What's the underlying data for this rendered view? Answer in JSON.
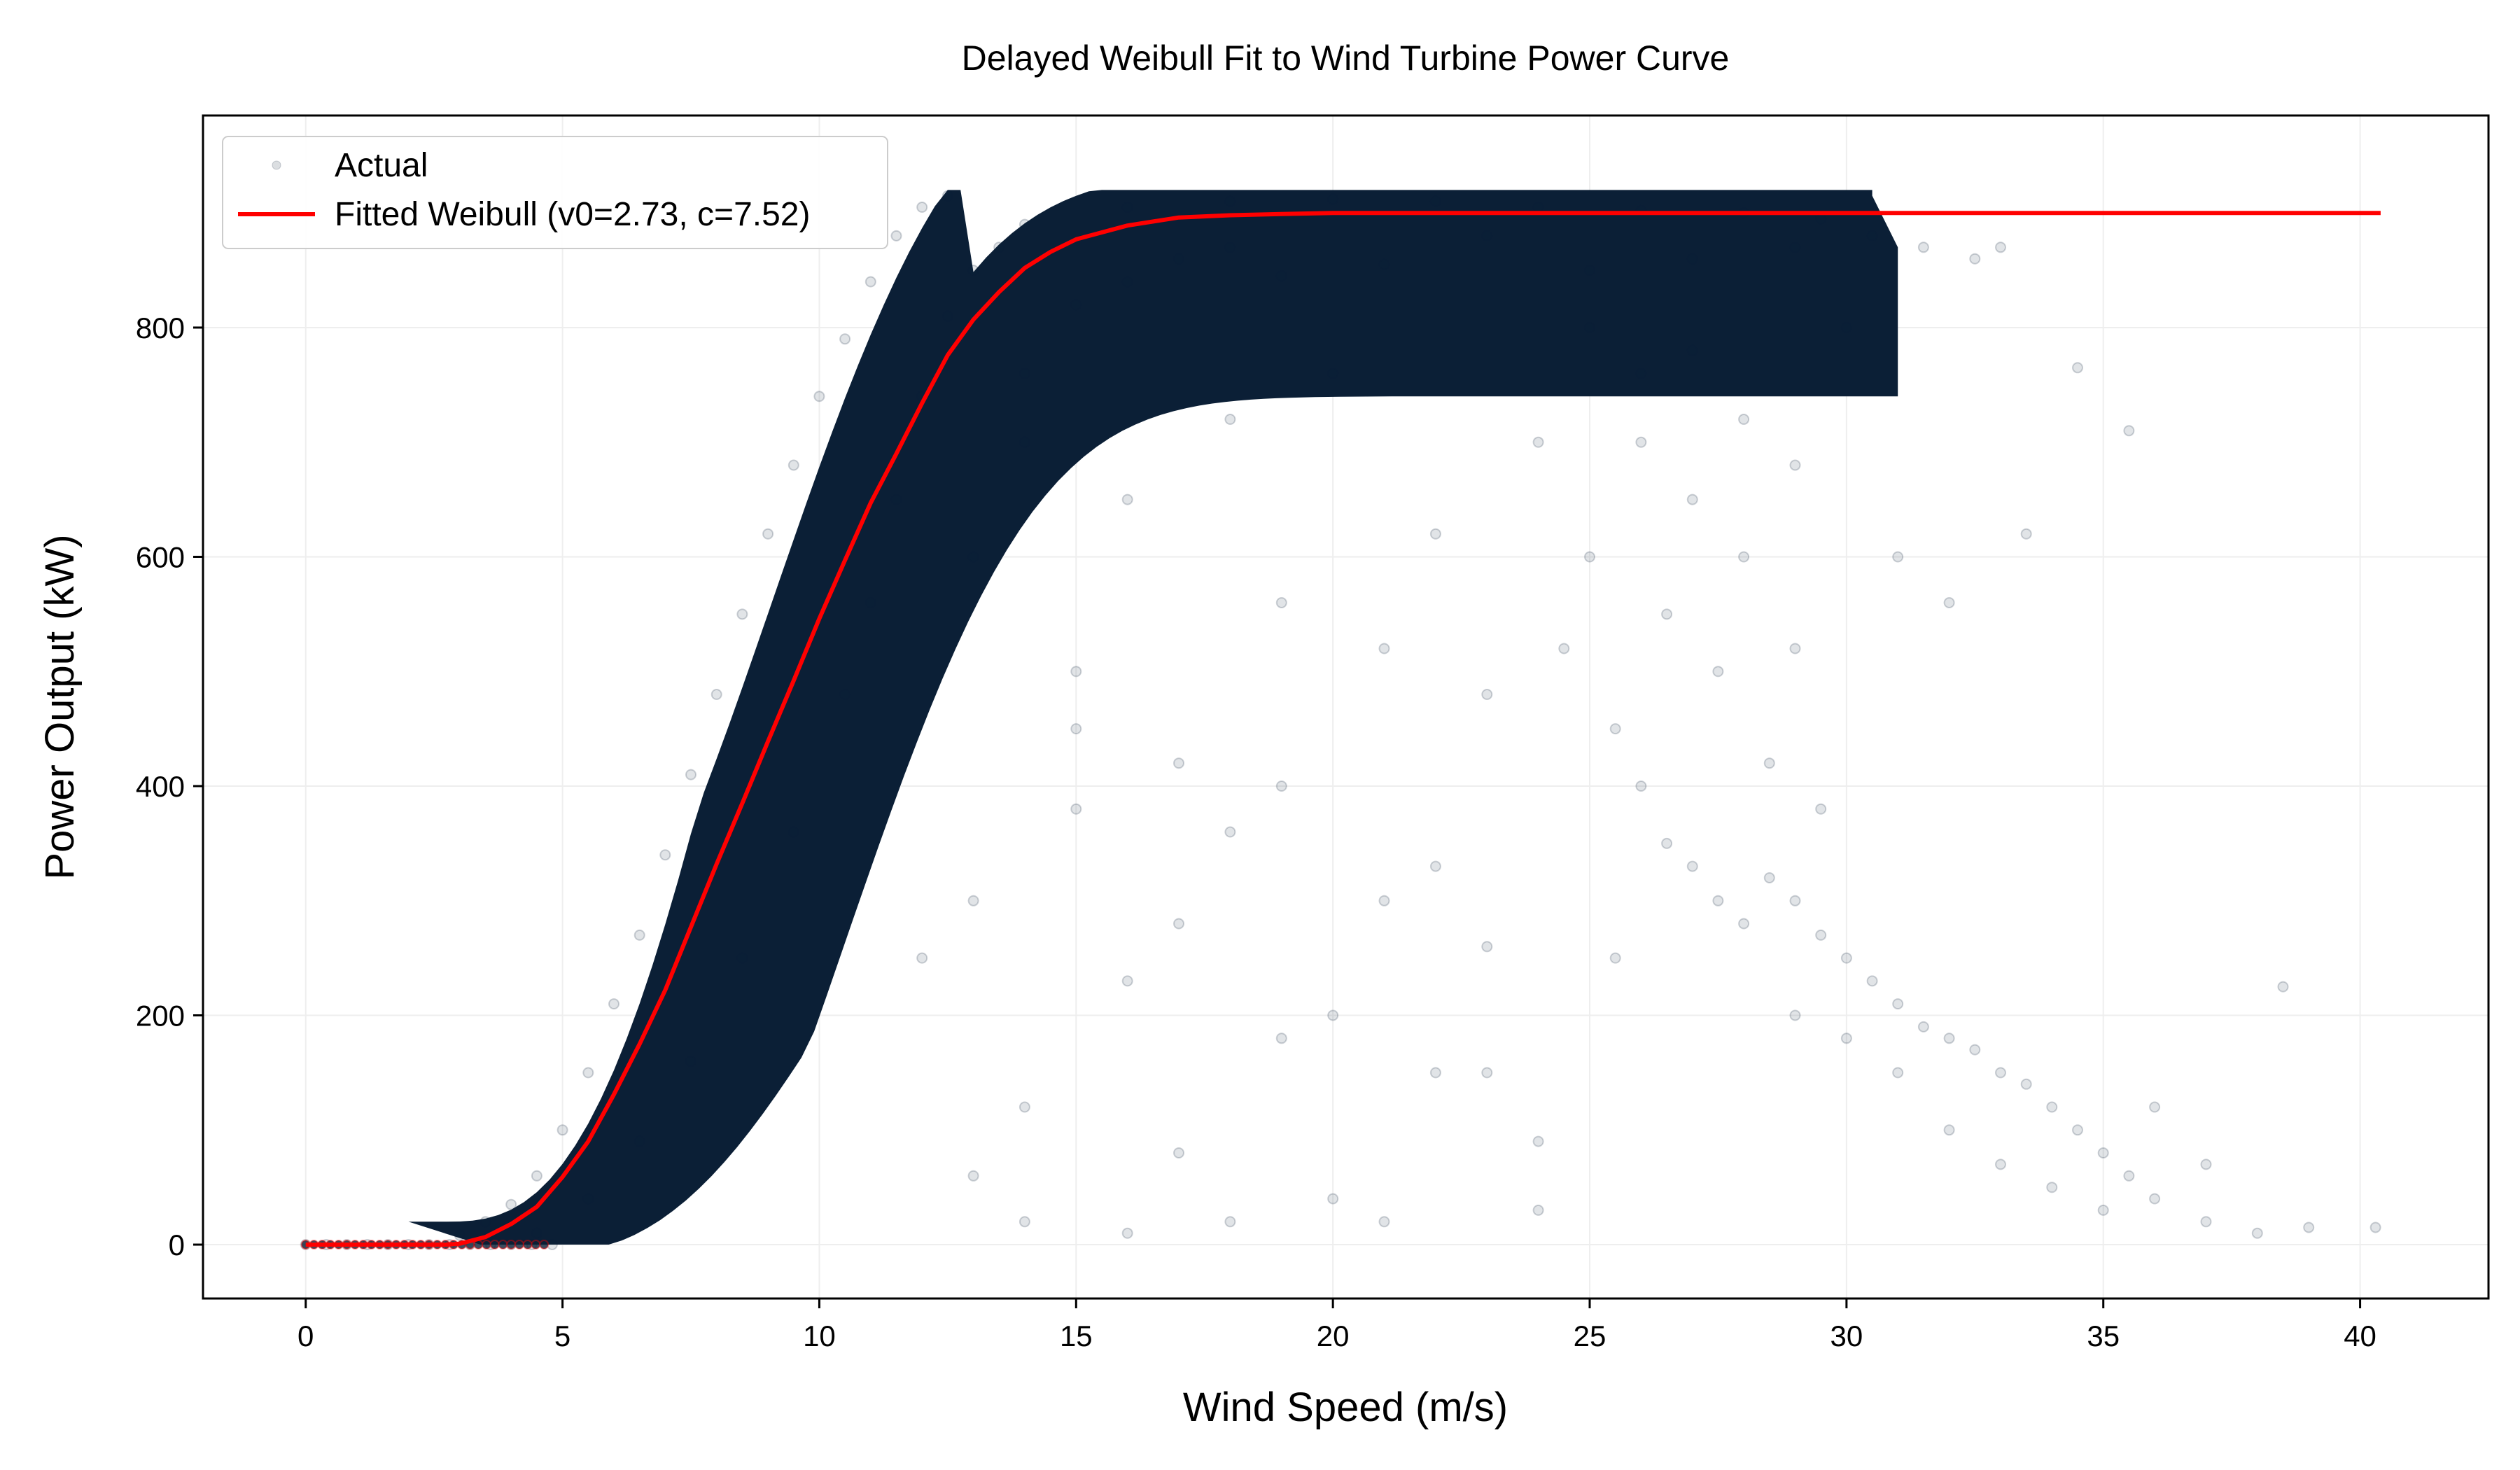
{
  "chart_data": {
    "type": "scatter",
    "title": "Delayed Weibull Fit to Wind Turbine Power Curve",
    "xlabel": "Wind Speed (m/s)",
    "ylabel": "Power Output (kW)",
    "xlim": [
      -2,
      42.5
    ],
    "ylim": [
      -47,
      985
    ],
    "xticks": [
      0,
      5,
      10,
      15,
      20,
      25,
      30,
      35,
      40
    ],
    "yticks": [
      0,
      200,
      400,
      600,
      800
    ],
    "grid": true,
    "legend_position": "top-left",
    "series": [
      {
        "name": "Actual",
        "kind": "scatter",
        "color": "#0b1f36",
        "opacity": 0.12,
        "points": [
          [
            0.0,
            0
          ],
          [
            0.4,
            0
          ],
          [
            0.8,
            0
          ],
          [
            1.2,
            0
          ],
          [
            1.6,
            0
          ],
          [
            2.0,
            0
          ],
          [
            2.4,
            0
          ],
          [
            2.8,
            0
          ],
          [
            3.2,
            0
          ],
          [
            3.6,
            0
          ],
          [
            4.0,
            0
          ],
          [
            4.4,
            0
          ],
          [
            4.8,
            0
          ],
          [
            3.0,
            8
          ],
          [
            3.5,
            20
          ],
          [
            4.0,
            35
          ],
          [
            4.5,
            60
          ],
          [
            5.0,
            100
          ],
          [
            5.5,
            150
          ],
          [
            6.0,
            210
          ],
          [
            6.5,
            270
          ],
          [
            7.0,
            340
          ],
          [
            7.5,
            410
          ],
          [
            8.0,
            480
          ],
          [
            8.5,
            550
          ],
          [
            9.0,
            620
          ],
          [
            9.5,
            680
          ],
          [
            10.0,
            740
          ],
          [
            10.5,
            790
          ],
          [
            11.0,
            840
          ],
          [
            11.5,
            880
          ],
          [
            12.0,
            905
          ],
          [
            12.5,
            915
          ],
          [
            4.5,
            10
          ],
          [
            5.5,
            40
          ],
          [
            6.5,
            90
          ],
          [
            7.5,
            160
          ],
          [
            8.5,
            250
          ],
          [
            9.5,
            360
          ],
          [
            10.5,
            480
          ],
          [
            11.0,
            560
          ],
          [
            11.5,
            650
          ],
          [
            12.0,
            740
          ],
          [
            12.5,
            810
          ],
          [
            13.0,
            850
          ],
          [
            13.5,
            870
          ],
          [
            14,
            890
          ],
          [
            16,
            905
          ],
          [
            18,
            910
          ],
          [
            20,
            912
          ],
          [
            22,
            910
          ],
          [
            24,
            905
          ],
          [
            26,
            902
          ],
          [
            28,
            900
          ],
          [
            29.5,
            895
          ],
          [
            30.5,
            880
          ],
          [
            31.5,
            870
          ],
          [
            32.5,
            860
          ],
          [
            14,
            760
          ],
          [
            15,
            820
          ],
          [
            16,
            840
          ],
          [
            17,
            860
          ],
          [
            18,
            870
          ],
          [
            19,
            845
          ],
          [
            21,
            855
          ],
          [
            23,
            880
          ],
          [
            25,
            850
          ],
          [
            27,
            860
          ],
          [
            29,
            870
          ],
          [
            13,
            600
          ],
          [
            14,
            700
          ],
          [
            15,
            500
          ],
          [
            16,
            650
          ],
          [
            17,
            420
          ],
          [
            18,
            720
          ],
          [
            19,
            560
          ],
          [
            20,
            760
          ],
          [
            21,
            300
          ],
          [
            22,
            620
          ],
          [
            23,
            480
          ],
          [
            24,
            700
          ],
          [
            13,
            300
          ],
          [
            14,
            120
          ],
          [
            15,
            450
          ],
          [
            16,
            230
          ],
          [
            17,
            80
          ],
          [
            18,
            360
          ],
          [
            19,
            180
          ],
          [
            20,
            40
          ],
          [
            21,
            520
          ],
          [
            22,
            150
          ],
          [
            23,
            260
          ],
          [
            24,
            90
          ],
          [
            12,
            250
          ],
          [
            13,
            60
          ],
          [
            14,
            20
          ],
          [
            15,
            380
          ],
          [
            16,
            10
          ],
          [
            17,
            280
          ],
          [
            18,
            20
          ],
          [
            19,
            400
          ],
          [
            20,
            200
          ],
          [
            21,
            20
          ],
          [
            22,
            330
          ],
          [
            23,
            150
          ],
          [
            24,
            30
          ],
          [
            25,
            600
          ],
          [
            25.5,
            450
          ],
          [
            26,
            700
          ],
          [
            26.5,
            550
          ],
          [
            27,
            650
          ],
          [
            27.5,
            500
          ],
          [
            28,
            600
          ],
          [
            28.5,
            420
          ],
          [
            29,
            520
          ],
          [
            29.5,
            380
          ],
          [
            26,
            400
          ],
          [
            26.5,
            350
          ],
          [
            27,
            330
          ],
          [
            27.5,
            300
          ],
          [
            28,
            280
          ],
          [
            28.5,
            320
          ],
          [
            29,
            300
          ],
          [
            29.5,
            270
          ],
          [
            30,
            250
          ],
          [
            30.5,
            230
          ],
          [
            31,
            210
          ],
          [
            31.5,
            190
          ],
          [
            32,
            180
          ],
          [
            32.5,
            170
          ],
          [
            33,
            150
          ],
          [
            33.5,
            140
          ],
          [
            34,
            120
          ],
          [
            34.5,
            100
          ],
          [
            35,
            80
          ],
          [
            35.5,
            60
          ],
          [
            36,
            40
          ],
          [
            37,
            20
          ],
          [
            38,
            10
          ],
          [
            39,
            15
          ],
          [
            40.3,
            15
          ],
          [
            29,
            200
          ],
          [
            30,
            180
          ],
          [
            31,
            150
          ],
          [
            32,
            100
          ],
          [
            33,
            70
          ],
          [
            34,
            50
          ],
          [
            35,
            30
          ],
          [
            36,
            120
          ],
          [
            37,
            70
          ],
          [
            38.5,
            225
          ],
          [
            35.5,
            710
          ],
          [
            34.5,
            765
          ],
          [
            33.5,
            620
          ],
          [
            33,
            870
          ],
          [
            25,
            800
          ],
          [
            26,
            760
          ],
          [
            27,
            780
          ],
          [
            28,
            720
          ],
          [
            29,
            680
          ],
          [
            30,
            800
          ],
          [
            31,
            600
          ],
          [
            32,
            560
          ],
          [
            24.5,
            520
          ],
          [
            25.5,
            250
          ]
        ]
      },
      {
        "name": "Fitted Weibull (v0=2.73, c=7.52)",
        "kind": "line",
        "color": "#ff0000",
        "x": [
          0,
          1,
          2,
          2.73,
          3,
          3.5,
          4,
          4.5,
          5,
          5.5,
          6,
          6.5,
          7,
          7.5,
          8,
          8.5,
          9,
          9.5,
          10,
          10.5,
          11,
          11.5,
          12,
          12.5,
          13,
          13.5,
          14,
          14.5,
          15,
          16,
          17,
          18,
          19,
          20,
          25,
          30,
          35,
          40.4
        ],
        "y": [
          0,
          0,
          0,
          0,
          0.8,
          6.6,
          18,
          33,
          59,
          90,
          131,
          175,
          222,
          277,
          332,
          385,
          439,
          492,
          546,
          597,
          647,
          690,
          734,
          776,
          807,
          831,
          852,
          866,
          877,
          889,
          896,
          898,
          899,
          900,
          900,
          900,
          900,
          900
        ]
      }
    ]
  }
}
